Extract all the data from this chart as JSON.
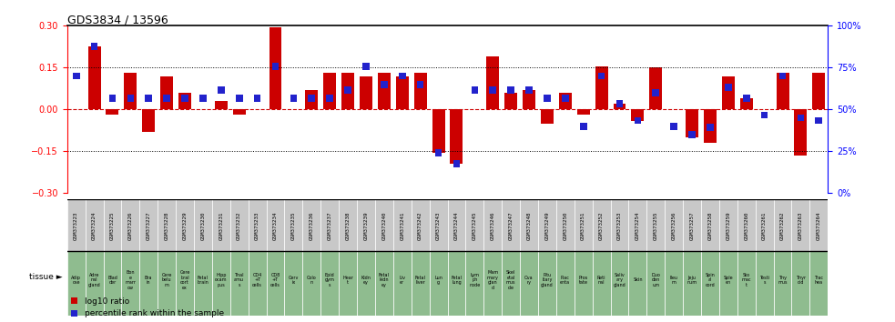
{
  "title": "GDS3834 / 13596",
  "gsm_labels": [
    "GSM373223",
    "GSM373224",
    "GSM373225",
    "GSM373226",
    "GSM373227",
    "GSM373228",
    "GSM373229",
    "GSM373230",
    "GSM373231",
    "GSM373232",
    "GSM373233",
    "GSM373234",
    "GSM373235",
    "GSM373236",
    "GSM373237",
    "GSM373238",
    "GSM373239",
    "GSM373240",
    "GSM373241",
    "GSM373242",
    "GSM373243",
    "GSM373244",
    "GSM373245",
    "GSM373246",
    "GSM373247",
    "GSM373248",
    "GSM373249",
    "GSM373250",
    "GSM373251",
    "GSM373252",
    "GSM373253",
    "GSM373254",
    "GSM373255",
    "GSM373256",
    "GSM373257",
    "GSM373258",
    "GSM373259",
    "GSM373260",
    "GSM373261",
    "GSM373262",
    "GSM373263",
    "GSM373264"
  ],
  "tissue_labels_short": [
    "Adip\nose",
    "Adre\nnal\ngland",
    "Blad\nder",
    "Bon\ne\nmarr\now",
    "Bra\nin",
    "Cere\nbelu\nm",
    "Cere\nbral\ncort\nex",
    "Fetal\nbrain",
    "Hipp\nocam\npus",
    "Thal\namu\ns",
    "CD4\n+T\ncells",
    "CD8\n+T\ncells",
    "Cerv\nix",
    "Colo\nn",
    "Epid\ngym\ns",
    "Hear\nt",
    "Kidn\ney",
    "Fetal\nkidn\ney",
    "Liv\ner",
    "Fetal\nliver",
    "Lun\ng",
    "Fetal\nlung",
    "Lym\nph\nnode",
    "Mam\nmary\nglan\nd",
    "Skel\netal\nmus\ncle",
    "Ova\nry",
    "Pitu\nitary\ngland",
    "Plac\nenta",
    "Pros\ntate",
    "Reti\nnal",
    "Saliv\nary\ngland",
    "Skin",
    "Duo\nden\num",
    "Ileu\nm",
    "Jeju\nnum",
    "Spin\nal\ncord",
    "Sple\nen",
    "Sto\nmac\nt",
    "Testi\ns",
    "Thy\nmus",
    "Thyr\noid",
    "Trac\nhea"
  ],
  "log10_ratio": [
    0.0,
    0.225,
    -0.02,
    0.13,
    -0.08,
    0.12,
    0.06,
    0.0,
    0.03,
    -0.02,
    0.0,
    0.295,
    0.0,
    0.07,
    0.13,
    0.13,
    0.12,
    0.13,
    0.12,
    0.13,
    -0.155,
    -0.195,
    0.0,
    0.19,
    0.06,
    0.07,
    -0.05,
    0.06,
    -0.02,
    0.155,
    0.02,
    -0.04,
    0.15,
    0.0,
    -0.1,
    -0.12,
    0.12,
    0.04,
    0.0,
    0.13,
    -0.165,
    0.13
  ],
  "pct_rank_value": [
    0.12,
    0.225,
    0.04,
    0.04,
    0.04,
    0.04,
    0.04,
    0.04,
    0.07,
    0.04,
    0.04,
    0.155,
    0.04,
    0.04,
    0.04,
    0.07,
    0.155,
    0.09,
    0.12,
    0.09,
    -0.155,
    -0.195,
    0.07,
    0.07,
    0.07,
    0.07,
    0.04,
    0.04,
    -0.06,
    0.12,
    0.02,
    -0.04,
    0.06,
    -0.06,
    -0.09,
    -0.065,
    0.08,
    0.04,
    -0.02,
    0.12,
    -0.03,
    -0.04
  ],
  "pct_bar_height": 0.025,
  "bar_color_red": "#cc0000",
  "bar_color_blue": "#2222cc",
  "ylim": [
    -0.3,
    0.3
  ],
  "dotted_lines": [
    -0.15,
    0.15
  ],
  "zero_line_color": "#cc0000",
  "background_color": "#ffffff",
  "table_bg_gray": "#c8c8c8",
  "table_bg_green": "#8fbc8f",
  "right_axis_ticks": [
    0,
    25,
    50,
    75,
    100
  ],
  "right_axis_values": [
    -0.3,
    -0.15,
    0.0,
    0.15,
    0.3
  ],
  "legend_log10": "log10 ratio",
  "legend_pct": "percentile rank within the sample"
}
